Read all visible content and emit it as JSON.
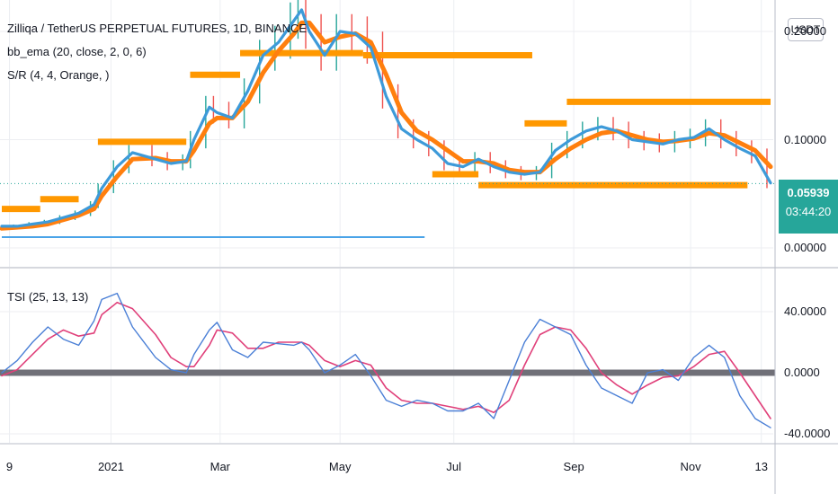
{
  "legend": {
    "title": "Zilliqa / TetherUS PERPETUAL FUTURES, 1D, BINANCE",
    "bb_ema": "bb_ema (20, close, 2, 0, 6)",
    "sr": "S/R (4, 4, Orange, )",
    "tsi": "TSI (25, 13, 13)"
  },
  "currency_label": "USDT",
  "price_label": {
    "value": "0.05939",
    "countdown": "03:44:20"
  },
  "colors": {
    "price_line": "#3d9ad9",
    "ema": "#ff7f0e",
    "sr": "#ff9800",
    "tsi": "#4a7fd6",
    "signal": "#e0407a",
    "zero": "#707078",
    "bull": "#26a69a",
    "bear": "#ef5350",
    "badge": "#26a69a"
  },
  "chart_data": [
    {
      "type": "line",
      "panel": "price",
      "ylim": [
        0.0,
        0.26
      ],
      "y_ticks": [
        {
          "v": 0.2,
          "label": "0.20000"
        },
        {
          "v": 0.1,
          "label": "0.10000"
        },
        {
          "v": 0.0,
          "label": "0.00000"
        }
      ],
      "x_ticks": [
        {
          "t": 0.01,
          "label": "9"
        },
        {
          "t": 0.142,
          "label": "2021"
        },
        {
          "t": 0.284,
          "label": "Mar"
        },
        {
          "t": 0.44,
          "label": "May"
        },
        {
          "t": 0.588,
          "label": "Jul"
        },
        {
          "t": 0.744,
          "label": "Sep"
        },
        {
          "t": 0.896,
          "label": "Nov"
        },
        {
          "t": 0.988,
          "label": "13"
        }
      ],
      "x": [
        0,
        0.02,
        0.04,
        0.06,
        0.08,
        0.1,
        0.12,
        0.13,
        0.15,
        0.17,
        0.2,
        0.22,
        0.24,
        0.25,
        0.27,
        0.28,
        0.3,
        0.32,
        0.34,
        0.36,
        0.38,
        0.39,
        0.4,
        0.42,
        0.44,
        0.46,
        0.48,
        0.5,
        0.52,
        0.54,
        0.56,
        0.58,
        0.6,
        0.62,
        0.64,
        0.66,
        0.68,
        0.7,
        0.72,
        0.74,
        0.76,
        0.78,
        0.8,
        0.82,
        0.84,
        0.86,
        0.88,
        0.9,
        0.92,
        0.94,
        0.96,
        0.98,
        1.0
      ],
      "series": [
        {
          "values": [
            0.02,
            0.02,
            0.022,
            0.024,
            0.028,
            0.032,
            0.04,
            0.055,
            0.075,
            0.088,
            0.082,
            0.078,
            0.08,
            0.1,
            0.13,
            0.125,
            0.12,
            0.145,
            0.178,
            0.19,
            0.21,
            0.22,
            0.2,
            0.178,
            0.2,
            0.198,
            0.185,
            0.14,
            0.11,
            0.1,
            0.092,
            0.078,
            0.075,
            0.082,
            0.075,
            0.07,
            0.068,
            0.07,
            0.09,
            0.1,
            0.108,
            0.112,
            0.108,
            0.1,
            0.098,
            0.096,
            0.1,
            0.102,
            0.11,
            0.1,
            0.092,
            0.085,
            0.06
          ]
        },
        {
          "values": [
            0.018,
            0.019,
            0.02,
            0.022,
            0.026,
            0.03,
            0.036,
            0.048,
            0.066,
            0.082,
            0.083,
            0.08,
            0.08,
            0.09,
            0.115,
            0.12,
            0.12,
            0.135,
            0.162,
            0.182,
            0.198,
            0.208,
            0.208,
            0.19,
            0.195,
            0.198,
            0.19,
            0.16,
            0.125,
            0.108,
            0.1,
            0.09,
            0.08,
            0.08,
            0.078,
            0.072,
            0.07,
            0.07,
            0.082,
            0.092,
            0.1,
            0.106,
            0.108,
            0.104,
            0.1,
            0.098,
            0.099,
            0.101,
            0.106,
            0.104,
            0.097,
            0.09,
            0.075
          ]
        }
      ],
      "sr_levels": [
        {
          "t0": 0.0,
          "t1": 0.05,
          "v": 0.036
        },
        {
          "t0": 0.05,
          "t1": 0.1,
          "v": 0.045
        },
        {
          "t0": 0.125,
          "t1": 0.24,
          "v": 0.098
        },
        {
          "t0": 0.245,
          "t1": 0.31,
          "v": 0.16
        },
        {
          "t0": 0.31,
          "t1": 0.47,
          "v": 0.18
        },
        {
          "t0": 0.47,
          "t1": 0.69,
          "v": 0.178
        },
        {
          "t0": 0.56,
          "t1": 0.62,
          "v": 0.068
        },
        {
          "t0": 0.62,
          "t1": 0.97,
          "v": 0.058
        },
        {
          "t0": 0.68,
          "t1": 0.735,
          "v": 0.115
        },
        {
          "t0": 0.735,
          "t1": 1.0,
          "v": 0.135
        }
      ],
      "support_line": {
        "t0": 0.0,
        "t1": 0.55,
        "v": 0.01
      },
      "last_price": 0.05939
    },
    {
      "type": "line",
      "panel": "tsi",
      "ylim": [
        -40,
        60
      ],
      "y_ticks": [
        {
          "v": 40,
          "label": "40.0000"
        },
        {
          "v": 0,
          "label": "0.0000"
        },
        {
          "v": -40,
          "label": "-40.0000"
        }
      ],
      "x": [
        0,
        0.02,
        0.04,
        0.06,
        0.08,
        0.1,
        0.12,
        0.13,
        0.15,
        0.17,
        0.2,
        0.22,
        0.24,
        0.25,
        0.27,
        0.28,
        0.3,
        0.32,
        0.34,
        0.36,
        0.38,
        0.39,
        0.4,
        0.42,
        0.44,
        0.46,
        0.48,
        0.5,
        0.52,
        0.54,
        0.56,
        0.58,
        0.6,
        0.62,
        0.64,
        0.66,
        0.68,
        0.7,
        0.72,
        0.74,
        0.76,
        0.78,
        0.8,
        0.82,
        0.84,
        0.86,
        0.88,
        0.9,
        0.92,
        0.94,
        0.96,
        0.98,
        1.0
      ],
      "series": [
        {
          "values": [
            0,
            8,
            20,
            30,
            22,
            18,
            34,
            48,
            52,
            30,
            10,
            2,
            0,
            12,
            28,
            33,
            15,
            10,
            20,
            19,
            18,
            20,
            15,
            0,
            5,
            12,
            -2,
            -18,
            -22,
            -18,
            -20,
            -25,
            -25,
            -20,
            -30,
            -5,
            20,
            35,
            30,
            25,
            5,
            -10,
            -15,
            -20,
            0,
            2,
            -5,
            10,
            18,
            10,
            -15,
            -30,
            -36
          ]
        },
        {
          "values": [
            -2,
            2,
            12,
            22,
            28,
            24,
            26,
            38,
            46,
            42,
            25,
            10,
            4,
            4,
            18,
            28,
            26,
            16,
            16,
            20,
            20,
            20,
            18,
            8,
            4,
            8,
            5,
            -10,
            -18,
            -20,
            -20,
            -22,
            -24,
            -22,
            -26,
            -18,
            5,
            25,
            30,
            28,
            16,
            0,
            -8,
            -14,
            -8,
            -3,
            -2,
            4,
            12,
            14,
            0,
            -15,
            -30
          ]
        }
      ]
    }
  ]
}
